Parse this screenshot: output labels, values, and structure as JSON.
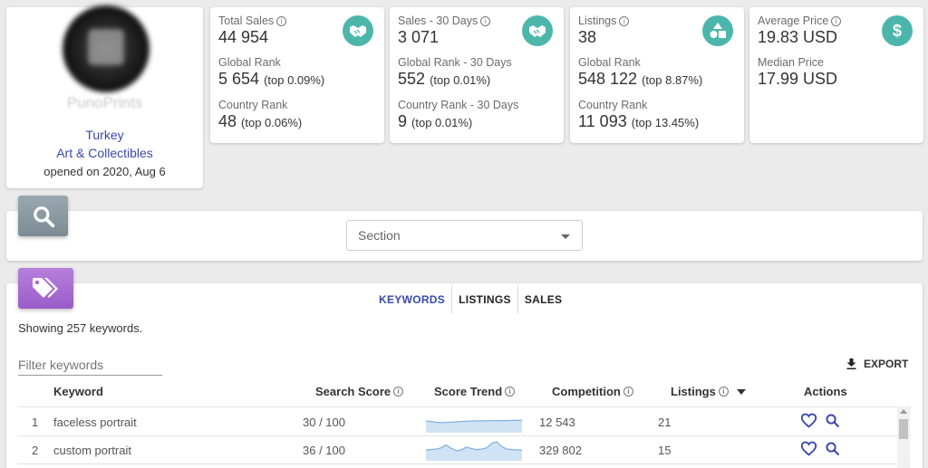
{
  "shop": {
    "name": "PunoPrints",
    "country": "Turkey",
    "category": "Art & Collectibles",
    "opened": "opened on 2020, Aug 6"
  },
  "stats": [
    {
      "icon": "handshake-icon",
      "groups": [
        {
          "label": "Total Sales",
          "info": true,
          "value": "44 954",
          "extra": ""
        },
        {
          "label": "Global Rank",
          "info": false,
          "value": "5 654",
          "extra": "(top 0.09%)"
        },
        {
          "label": "Country Rank",
          "info": false,
          "value": "48",
          "extra": "(top 0.06%)"
        }
      ]
    },
    {
      "icon": "handshake-icon",
      "groups": [
        {
          "label": "Sales - 30 Days",
          "info": true,
          "value": "3 071",
          "extra": ""
        },
        {
          "label": "Global Rank - 30 Days",
          "info": false,
          "value": "552",
          "extra": "(top 0.01%)"
        },
        {
          "label": "Country Rank - 30 Days",
          "info": false,
          "value": "9",
          "extra": "(top 0.01%)"
        }
      ]
    },
    {
      "icon": "shapes-icon",
      "groups": [
        {
          "label": "Listings",
          "info": true,
          "value": "38",
          "extra": ""
        },
        {
          "label": "Global Rank",
          "info": false,
          "value": "548 122",
          "extra": "(top 8.87%)"
        },
        {
          "label": "Country Rank",
          "info": false,
          "value": "11 093",
          "extra": "(top 13.45%)"
        }
      ]
    },
    {
      "icon": "dollar-icon",
      "groups": [
        {
          "label": "Average Price",
          "info": true,
          "value": "19.83 USD",
          "extra": ""
        },
        {
          "label": "Median Price",
          "info": false,
          "value": "17.99 USD",
          "extra": ""
        }
      ]
    }
  ],
  "search": {
    "section_placeholder": "Section"
  },
  "keywords": {
    "tabs": [
      "KEYWORDS",
      "LISTINGS",
      "SALES"
    ],
    "showing": "Showing 257 keywords.",
    "filter_placeholder": "Filter keywords",
    "export_label": "EXPORT",
    "columns": [
      "Keyword",
      "Search Score",
      "Score Trend",
      "Competition",
      "Listings",
      "Actions"
    ],
    "rows": [
      {
        "num": "1",
        "keyword": "faceless portrait",
        "search_score": "30 / 100",
        "competition": "12 543",
        "listings": "21",
        "trend": [
          0.55,
          0.52,
          0.48,
          0.45,
          0.46,
          0.48,
          0.5,
          0.52,
          0.54,
          0.55,
          0.56,
          0.56,
          0.57,
          0.57,
          0.58,
          0.58,
          0.58,
          0.59,
          0.59,
          0.6
        ]
      },
      {
        "num": "2",
        "keyword": "custom portrait",
        "search_score": "36 / 100",
        "competition": "329 802",
        "listings": "15",
        "trend": [
          0.5,
          0.52,
          0.55,
          0.62,
          0.8,
          0.6,
          0.45,
          0.5,
          0.68,
          0.58,
          0.52,
          0.55,
          0.62,
          0.9,
          1.0,
          0.7,
          0.55,
          0.52,
          0.5,
          0.5
        ]
      }
    ]
  }
}
